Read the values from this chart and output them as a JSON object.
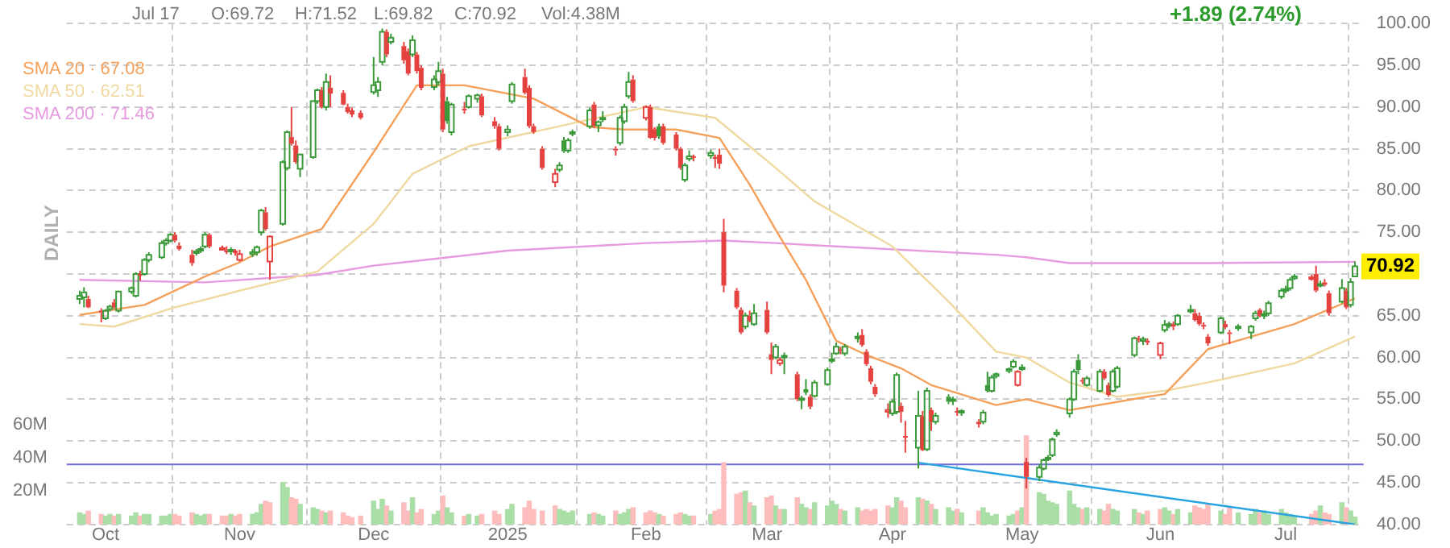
{
  "chart_data": {
    "type": "candlestick",
    "x": [
      "2024-09-25",
      "2024-09-26",
      "2024-09-27",
      "2024-09-30",
      "2024-10-01",
      "2024-10-02",
      "2024-10-03",
      "2024-10-04",
      "2024-10-07",
      "2024-10-08",
      "2024-10-09",
      "2024-10-10",
      "2024-10-11",
      "2024-10-14",
      "2024-10-15",
      "2024-10-16",
      "2024-10-17",
      "2024-10-18",
      "2024-10-21",
      "2024-10-22",
      "2024-10-23",
      "2024-10-24",
      "2024-10-25",
      "2024-10-28",
      "2024-10-29",
      "2024-10-30",
      "2024-10-31",
      "2024-11-01",
      "2024-11-04",
      "2024-11-05",
      "2024-11-06",
      "2024-11-07",
      "2024-11-08",
      "2024-11-11",
      "2024-11-12",
      "2024-11-13",
      "2024-11-14",
      "2024-11-15",
      "2024-11-18",
      "2024-11-19",
      "2024-11-20",
      "2024-11-21",
      "2024-11-22",
      "2024-11-25",
      "2024-11-26",
      "2024-11-27",
      "2024-11-29",
      "2024-12-02",
      "2024-12-03",
      "2024-12-04",
      "2024-12-05",
      "2024-12-06",
      "2024-12-09",
      "2024-12-10",
      "2024-12-11",
      "2024-12-12",
      "2024-12-13",
      "2024-12-16",
      "2024-12-17",
      "2024-12-18",
      "2024-12-19",
      "2024-12-20",
      "2024-12-23",
      "2024-12-24",
      "2024-12-26",
      "2024-12-27",
      "2024-12-30",
      "2024-12-31",
      "2025-01-02",
      "2025-01-03",
      "2025-01-06",
      "2025-01-07",
      "2025-01-08",
      "2025-01-10",
      "2025-01-13",
      "2025-01-14",
      "2025-01-15",
      "2025-01-16",
      "2025-01-17",
      "2025-01-21",
      "2025-01-22",
      "2025-01-23",
      "2025-01-24",
      "2025-01-27",
      "2025-01-28",
      "2025-01-29",
      "2025-01-30",
      "2025-01-31",
      "2025-02-03",
      "2025-02-04",
      "2025-02-05",
      "2025-02-06",
      "2025-02-07",
      "2025-02-10",
      "2025-02-11",
      "2025-02-12",
      "2025-02-13",
      "2025-02-14",
      "2025-02-18",
      "2025-02-19",
      "2025-02-20",
      "2025-02-21",
      "2025-02-24",
      "2025-02-25",
      "2025-02-26",
      "2025-02-27",
      "2025-02-28",
      "2025-03-03",
      "2025-03-04",
      "2025-03-05",
      "2025-03-06",
      "2025-03-07",
      "2025-03-10",
      "2025-03-11",
      "2025-03-12",
      "2025-03-13",
      "2025-03-14",
      "2025-03-17",
      "2025-03-18",
      "2025-03-19",
      "2025-03-20",
      "2025-03-21",
      "2025-03-24",
      "2025-03-25",
      "2025-03-26",
      "2025-03-27",
      "2025-03-28",
      "2025-03-31",
      "2025-04-01",
      "2025-04-02",
      "2025-04-03",
      "2025-04-04",
      "2025-04-07",
      "2025-04-08",
      "2025-04-09",
      "2025-04-10",
      "2025-04-11",
      "2025-04-14",
      "2025-04-15",
      "2025-04-16",
      "2025-04-17",
      "2025-04-21",
      "2025-04-22",
      "2025-04-23",
      "2025-04-24",
      "2025-04-25",
      "2025-04-28",
      "2025-04-29",
      "2025-04-30",
      "2025-05-01",
      "2025-05-02",
      "2025-05-05",
      "2025-05-06",
      "2025-05-07",
      "2025-05-08",
      "2025-05-09",
      "2025-05-12",
      "2025-05-13",
      "2025-05-14",
      "2025-05-15",
      "2025-05-16",
      "2025-05-19",
      "2025-05-20",
      "2025-05-21",
      "2025-05-22",
      "2025-05-23",
      "2025-05-27",
      "2025-05-28",
      "2025-05-29",
      "2025-05-30",
      "2025-06-02",
      "2025-06-03",
      "2025-06-04",
      "2025-06-05",
      "2025-06-06",
      "2025-06-09",
      "2025-06-10",
      "2025-06-11",
      "2025-06-12",
      "2025-06-13",
      "2025-06-16",
      "2025-06-17",
      "2025-06-18",
      "2025-06-20",
      "2025-06-23",
      "2025-06-24",
      "2025-06-25",
      "2025-06-26",
      "2025-06-27",
      "2025-06-30",
      "2025-07-01",
      "2025-07-02",
      "2025-07-03",
      "2025-07-07",
      "2025-07-08",
      "2025-07-09",
      "2025-07-10",
      "2025-07-11",
      "2025-07-14",
      "2025-07-15",
      "2025-07-16",
      "2025-07-17"
    ],
    "ohlc": [
      [
        67.0,
        68.0,
        66.4,
        67.4
      ],
      [
        67.2,
        68.4,
        66.0,
        67.8
      ],
      [
        67.0,
        67.4,
        65.9,
        66.0
      ],
      [
        65.6,
        65.9,
        64.2,
        65.4
      ],
      [
        64.7,
        65.8,
        64.5,
        65.6
      ],
      [
        65.8,
        66.3,
        65.5,
        66.1
      ],
      [
        66.6,
        67.0,
        65.8,
        66.0
      ],
      [
        65.6,
        68.0,
        65.4,
        67.9
      ],
      [
        67.9,
        68.5,
        67.6,
        68.3
      ],
      [
        67.4,
        70.2,
        67.2,
        70.0
      ],
      [
        70.0,
        70.4,
        69.2,
        69.9
      ],
      [
        70.0,
        71.9,
        69.8,
        71.7
      ],
      [
        71.7,
        72.6,
        71.4,
        72.3
      ],
      [
        72.0,
        74.0,
        71.8,
        73.7
      ],
      [
        73.7,
        74.3,
        73.4,
        74.0
      ],
      [
        74.0,
        74.9,
        73.8,
        74.7
      ],
      [
        74.7,
        75.0,
        73.8,
        74.0
      ],
      [
        73.4,
        73.8,
        72.8,
        73.0
      ],
      [
        72.3,
        72.9,
        71.0,
        71.3
      ],
      [
        72.5,
        73.0,
        72.2,
        72.7
      ],
      [
        72.8,
        73.3,
        72.5,
        73.0
      ],
      [
        73.3,
        75.0,
        73.1,
        74.7
      ],
      [
        74.7,
        74.9,
        73.1,
        73.3
      ],
      [
        73.0,
        73.4,
        72.8,
        73.1
      ],
      [
        72.8,
        73.3,
        72.4,
        72.7
      ],
      [
        72.7,
        73.2,
        72.3,
        72.9
      ],
      [
        72.8,
        73.0,
        72.2,
        72.5
      ],
      [
        71.7,
        72.9,
        71.5,
        72.4
      ],
      [
        72.4,
        73.0,
        72.0,
        72.6
      ],
      [
        72.6,
        73.4,
        72.2,
        73.2
      ],
      [
        75.0,
        77.8,
        74.6,
        77.6
      ],
      [
        77.4,
        78.0,
        75.2,
        75.4
      ],
      [
        71.5,
        74.6,
        69.3,
        74.5
      ],
      [
        76.0,
        83.6,
        75.8,
        83.4
      ],
      [
        82.7,
        87.2,
        82.4,
        87.0
      ],
      [
        86.4,
        90.0,
        85.4,
        85.6
      ],
      [
        85.4,
        86.0,
        83.2,
        83.4
      ],
      [
        82.6,
        84.4,
        81.6,
        84.3
      ],
      [
        84.0,
        90.8,
        83.8,
        90.7
      ],
      [
        90.7,
        92.2,
        90.4,
        92.0
      ],
      [
        92.0,
        92.4,
        89.8,
        90.0
      ],
      [
        90.0,
        94.0,
        89.6,
        93.0
      ],
      [
        92.3,
        93.8,
        90.0,
        91.6
      ],
      [
        91.7,
        92.0,
        90.2,
        90.3
      ],
      [
        90.0,
        90.4,
        89.2,
        89.4
      ],
      [
        89.6,
        89.9,
        88.8,
        89.1
      ],
      [
        89.3,
        89.6,
        88.5,
        88.7
      ],
      [
        91.8,
        96.0,
        91.5,
        92.6
      ],
      [
        92.0,
        93.6,
        91.2,
        93.0
      ],
      [
        95.4,
        99.4,
        95.0,
        99.0
      ],
      [
        99.0,
        99.3,
        96.0,
        96.3
      ],
      [
        97.8,
        98.8,
        97.5,
        98.3
      ],
      [
        97.3,
        97.8,
        95.2,
        95.6
      ],
      [
        96.7,
        97.0,
        93.8,
        94.0
      ],
      [
        96.3,
        98.6,
        96.0,
        98.0
      ],
      [
        96.3,
        96.6,
        94.0,
        94.3
      ],
      [
        94.7,
        95.0,
        92.0,
        92.3
      ],
      [
        92.4,
        93.8,
        92.0,
        93.3
      ],
      [
        93.0,
        95.4,
        92.6,
        94.3
      ],
      [
        94.0,
        94.6,
        87.0,
        87.3
      ],
      [
        90.7,
        91.2,
        88.0,
        88.3
      ],
      [
        87.0,
        90.5,
        86.6,
        90.3
      ],
      [
        89.8,
        90.6,
        89.2,
        89.6
      ],
      [
        90.0,
        91.5,
        89.8,
        91.3
      ],
      [
        91.0,
        91.6,
        90.5,
        91.4
      ],
      [
        91.3,
        91.6,
        88.8,
        89.0
      ],
      [
        88.3,
        88.8,
        87.4,
        87.7
      ],
      [
        87.7,
        88.0,
        84.8,
        85.0
      ],
      [
        87.0,
        87.8,
        86.5,
        87.3
      ],
      [
        90.7,
        93.0,
        90.4,
        92.7
      ],
      [
        93.6,
        94.6,
        91.5,
        91.7
      ],
      [
        92.3,
        92.6,
        87.5,
        87.7
      ],
      [
        87.7,
        88.0,
        86.8,
        87.0
      ],
      [
        85.0,
        85.3,
        82.5,
        82.7
      ],
      [
        81.0,
        82.6,
        80.4,
        82.0
      ],
      [
        82.5,
        83.4,
        82.2,
        83.0
      ],
      [
        86.0,
        86.4,
        84.5,
        84.7
      ],
      [
        84.8,
        86.3,
        84.5,
        86.0
      ],
      [
        86.8,
        87.3,
        86.5,
        87.0
      ],
      [
        87.7,
        89.9,
        87.4,
        89.6
      ],
      [
        90.3,
        90.6,
        87.5,
        87.7
      ],
      [
        87.8,
        88.4,
        87.0,
        88.2
      ],
      [
        88.5,
        89.5,
        88.2,
        88.7
      ],
      [
        85.0,
        85.3,
        84.2,
        84.8
      ],
      [
        85.7,
        89.0,
        85.4,
        88.7
      ],
      [
        88.3,
        90.4,
        88.0,
        90.0
      ],
      [
        91.3,
        94.2,
        91.0,
        93.0
      ],
      [
        93.3,
        93.8,
        90.5,
        90.7
      ],
      [
        88.7,
        90.2,
        88.4,
        90.0
      ],
      [
        90.0,
        90.3,
        86.2,
        86.3
      ],
      [
        87.3,
        87.6,
        86.0,
        86.3
      ],
      [
        87.7,
        88.0,
        86.2,
        86.5
      ],
      [
        87.7,
        88.0,
        85.5,
        85.7
      ],
      [
        86.7,
        87.0,
        84.8,
        85.0
      ],
      [
        85.0,
        85.2,
        82.5,
        82.7
      ],
      [
        81.3,
        83.3,
        81.0,
        83.0
      ],
      [
        83.8,
        84.8,
        83.5,
        84.1
      ],
      [
        84.1,
        84.3,
        83.5,
        84.0
      ],
      [
        84.2,
        84.9,
        83.8,
        84.5
      ],
      [
        84.0,
        84.3,
        82.7,
        83.8
      ],
      [
        84.3,
        85.0,
        82.6,
        83.2
      ],
      [
        75.0,
        76.6,
        67.8,
        68.6
      ],
      [
        68.0,
        68.3,
        65.8,
        66.0
      ],
      [
        65.7,
        66.0,
        62.8,
        63.0
      ],
      [
        63.7,
        65.4,
        63.4,
        65.0
      ],
      [
        65.0,
        65.6,
        64.2,
        64.4
      ],
      [
        64.0,
        66.4,
        63.8,
        65.3
      ],
      [
        65.7,
        66.7,
        62.8,
        63.0
      ],
      [
        60.4,
        61.8,
        58.0,
        59.7
      ],
      [
        60.0,
        61.6,
        59.8,
        61.3
      ],
      [
        59.3,
        60.0,
        59.0,
        59.7
      ],
      [
        60.0,
        60.6,
        58.0,
        60.2
      ],
      [
        58.0,
        58.3,
        54.8,
        55.0
      ],
      [
        55.0,
        55.4,
        53.8,
        55.1
      ],
      [
        56.2,
        57.4,
        55.5,
        55.8
      ],
      [
        55.3,
        55.6,
        53.8,
        54.1
      ],
      [
        55.4,
        57.3,
        55.2,
        57.0
      ],
      [
        56.8,
        58.8,
        56.6,
        58.5
      ],
      [
        59.6,
        60.6,
        59.3,
        59.8
      ],
      [
        60.5,
        61.8,
        60.3,
        61.3
      ],
      [
        61.0,
        61.3,
        60.4,
        60.8
      ],
      [
        60.5,
        61.6,
        60.2,
        61.3
      ],
      [
        62.3,
        63.0,
        61.8,
        62.5
      ],
      [
        62.7,
        63.4,
        61.3,
        61.5
      ],
      [
        60.7,
        61.0,
        59.0,
        59.2
      ],
      [
        58.7,
        59.0,
        56.8,
        57.1
      ],
      [
        56.5,
        56.8,
        55.3,
        55.6
      ],
      [
        53.5,
        54.5,
        52.8,
        53.7
      ],
      [
        53.3,
        55.0,
        53.0,
        54.7
      ],
      [
        53.5,
        58.2,
        53.2,
        57.9
      ],
      [
        54.2,
        54.6,
        52.2,
        53.5
      ],
      [
        50.6,
        52.4,
        48.6,
        50.4
      ],
      [
        49.2,
        56.0,
        46.7,
        53.0
      ],
      [
        53.0,
        53.6,
        48.8,
        48.9
      ],
      [
        49.0,
        56.4,
        48.8,
        56.0
      ],
      [
        53.7,
        54.0,
        51.2,
        52.3
      ],
      [
        52.3,
        53.4,
        52.0,
        53.0
      ],
      [
        55.3,
        55.6,
        54.4,
        54.7
      ],
      [
        54.8,
        55.3,
        54.3,
        55.0
      ],
      [
        53.6,
        54.0,
        53.0,
        53.5
      ],
      [
        53.4,
        53.8,
        53.0,
        53.6
      ],
      [
        52.3,
        52.6,
        51.6,
        52.0
      ],
      [
        52.3,
        53.7,
        52.0,
        53.4
      ],
      [
        56.7,
        58.3,
        55.8,
        56.0
      ],
      [
        56.0,
        57.9,
        55.8,
        57.6
      ],
      [
        57.8,
        58.2,
        57.5,
        58.0
      ],
      [
        58.4,
        58.8,
        58.1,
        58.6
      ],
      [
        58.9,
        59.8,
        58.7,
        59.5
      ],
      [
        56.7,
        58.5,
        56.5,
        58.3
      ],
      [
        58.6,
        59.2,
        58.4,
        58.8
      ],
      [
        47.5,
        48.0,
        44.3,
        45.7
      ],
      [
        45.7,
        47.2,
        45.2,
        46.8
      ],
      [
        46.7,
        47.9,
        46.5,
        47.7
      ],
      [
        47.9,
        48.3,
        47.6,
        48.0
      ],
      [
        48.3,
        50.4,
        48.1,
        50.2
      ],
      [
        50.8,
        51.4,
        50.5,
        51.0
      ],
      [
        53.3,
        55.2,
        52.8,
        55.0
      ],
      [
        55.0,
        58.6,
        54.8,
        58.3
      ],
      [
        59.7,
        60.4,
        58.0,
        58.5
      ],
      [
        57.3,
        57.6,
        56.8,
        57.1
      ],
      [
        56.7,
        57.8,
        56.5,
        57.5
      ],
      [
        56.0,
        58.6,
        55.8,
        58.3
      ],
      [
        58.3,
        58.6,
        57.3,
        57.5
      ],
      [
        56.7,
        57.0,
        55.3,
        55.5
      ],
      [
        56.0,
        58.6,
        55.8,
        58.3
      ],
      [
        56.5,
        59.0,
        56.3,
        58.7
      ],
      [
        60.3,
        62.5,
        60.0,
        62.3
      ],
      [
        62.3,
        62.6,
        61.8,
        62.1
      ],
      [
        62.0,
        62.5,
        61.5,
        62.2
      ],
      [
        62.0,
        62.3,
        61.5,
        61.8
      ],
      [
        60.3,
        61.9,
        59.8,
        61.7
      ],
      [
        63.3,
        64.5,
        63.0,
        63.9
      ],
      [
        63.8,
        64.3,
        63.5,
        64.0
      ],
      [
        64.0,
        64.3,
        63.3,
        63.7
      ],
      [
        64.0,
        65.2,
        63.8,
        65.0
      ],
      [
        65.5,
        66.3,
        65.3,
        65.7
      ],
      [
        65.3,
        65.8,
        64.3,
        64.5
      ],
      [
        65.0,
        65.4,
        63.8,
        64.0
      ],
      [
        63.9,
        64.2,
        63.4,
        63.7
      ],
      [
        62.5,
        62.8,
        61.4,
        61.7
      ],
      [
        63.0,
        64.9,
        62.8,
        64.7
      ],
      [
        64.0,
        64.4,
        63.4,
        63.6
      ],
      [
        63.0,
        63.3,
        61.6,
        62.9
      ],
      [
        63.5,
        64.0,
        63.2,
        63.7
      ],
      [
        63.0,
        63.9,
        62.2,
        63.7
      ],
      [
        64.7,
        65.6,
        64.4,
        65.3
      ],
      [
        65.7,
        65.9,
        64.8,
        65.0
      ],
      [
        65.0,
        65.6,
        64.6,
        65.2
      ],
      [
        65.3,
        66.8,
        65.0,
        66.5
      ],
      [
        67.3,
        68.3,
        67.0,
        68.0
      ],
      [
        68.0,
        68.6,
        67.7,
        68.2
      ],
      [
        68.3,
        69.6,
        68.0,
        69.3
      ],
      [
        69.5,
        70.0,
        69.3,
        69.7
      ],
      [
        69.5,
        69.9,
        69.2,
        69.6
      ],
      [
        70.0,
        71.0,
        67.8,
        68.0
      ],
      [
        68.6,
        69.2,
        68.4,
        68.8
      ],
      [
        69.0,
        69.4,
        68.5,
        68.7
      ],
      [
        67.7,
        68.0,
        65.0,
        65.3
      ],
      [
        66.7,
        69.4,
        66.5,
        68.3
      ],
      [
        68.0,
        68.3,
        65.8,
        66.0
      ],
      [
        66.3,
        69.5,
        66.0,
        69.03
      ],
      [
        69.72,
        71.52,
        69.72,
        70.92
      ]
    ],
    "colors": [
      "#3a9a3a",
      "#3a9a3a",
      "#e5413f",
      "#e5413f",
      "#3a9a3a",
      "#3a9a3a",
      "#e5413f",
      "#3a9a3a",
      "#3a9a3a",
      "#3a9a3a",
      "#e5413f",
      "#3a9a3a",
      "#3a9a3a",
      "#3a9a3a",
      "#3a9a3a",
      "#3a9a3a",
      "#e5413f",
      "#e5413f",
      "#e5413f",
      "#3a9a3a",
      "#3a9a3a",
      "#3a9a3a",
      "#e5413f",
      "#e5413f",
      "#e5413f",
      "#3a9a3a",
      "#e5413f",
      "#e5413f",
      "#3a9a3a",
      "#3a9a3a",
      "#3a9a3a",
      "#e5413f",
      "#e5413f",
      "#3a9a3a",
      "#3a9a3a",
      "#e5413f",
      "#e5413f",
      "#3a9a3a",
      "#3a9a3a",
      "#3a9a3a",
      "#e5413f",
      "#3a9a3a",
      "#e5413f",
      "#e5413f",
      "#e5413f",
      "#e5413f",
      "#e5413f",
      "#3a9a3a",
      "#3a9a3a",
      "#3a9a3a",
      "#e5413f",
      "#3a9a3a",
      "#e5413f",
      "#e5413f",
      "#3a9a3a",
      "#e5413f",
      "#e5413f",
      "#3a9a3a",
      "#3a9a3a",
      "#e5413f",
      "#3a9a3a",
      "#3a9a3a",
      "#e5413f",
      "#3a9a3a",
      "#3a9a3a",
      "#e5413f",
      "#e5413f",
      "#e5413f",
      "#3a9a3a",
      "#3a9a3a",
      "#e5413f",
      "#e5413f",
      "#e5413f",
      "#e5413f",
      "#e5413f",
      "#3a9a3a",
      "#3a9a3a",
      "#3a9a3a",
      "#3a9a3a",
      "#3a9a3a",
      "#e5413f",
      "#3a9a3a",
      "#3a9a3a",
      "#e5413f",
      "#3a9a3a",
      "#3a9a3a",
      "#3a9a3a",
      "#e5413f",
      "#e5413f",
      "#e5413f",
      "#e5413f",
      "#3a9a3a",
      "#e5413f",
      "#e5413f",
      "#e5413f",
      "#3a9a3a",
      "#3a9a3a",
      "#e5413f",
      "#3a9a3a",
      "#e5413f",
      "#e5413f",
      "#e5413f",
      "#e5413f",
      "#e5413f",
      "#3a9a3a",
      "#e5413f",
      "#3a9a3a",
      "#e5413f",
      "#e5413f",
      "#3a9a3a",
      "#e5413f",
      "#3a9a3a",
      "#e5413f",
      "#3a9a3a",
      "#3a9a3a",
      "#e5413f",
      "#3a9a3a",
      "#3a9a3a",
      "#3a9a3a",
      "#3a9a3a",
      "#e5413f",
      "#3a9a3a",
      "#3a9a3a",
      "#e5413f",
      "#e5413f",
      "#e5413f",
      "#e5413f",
      "#e5413f",
      "#3a9a3a",
      "#3a9a3a",
      "#e5413f",
      "#e5413f",
      "#3a9a3a",
      "#e5413f",
      "#3a9a3a",
      "#e5413f",
      "#3a9a3a",
      "#3a9a3a",
      "#3a9a3a",
      "#e5413f",
      "#3a9a3a",
      "#e5413f",
      "#3a9a3a",
      "#3a9a3a",
      "#3a9a3a",
      "#3a9a3a",
      "#3a9a3a",
      "#3a9a3a",
      "#e5413f",
      "#3a9a3a",
      "#e5413f",
      "#3a9a3a",
      "#3a9a3a",
      "#3a9a3a",
      "#3a9a3a",
      "#3a9a3a",
      "#3a9a3a",
      "#3a9a3a",
      "#3a9a3a",
      "#e5413f",
      "#3a9a3a",
      "#3a9a3a",
      "#e5413f",
      "#e5413f",
      "#3a9a3a",
      "#3a9a3a",
      "#3a9a3a",
      "#e5413f",
      "#3a9a3a",
      "#e5413f",
      "#e5413f",
      "#3a9a3a",
      "#3a9a3a",
      "#e5413f",
      "#3a9a3a",
      "#3a9a3a",
      "#e5413f",
      "#e5413f",
      "#e5413f",
      "#e5413f",
      "#3a9a3a",
      "#e5413f",
      "#e5413f",
      "#3a9a3a",
      "#3a9a3a",
      "#3a9a3a",
      "#e5413f",
      "#3a9a3a",
      "#3a9a3a",
      "#3a9a3a",
      "#3a9a3a",
      "#3a9a3a",
      "#3a9a3a",
      "#e5413f",
      "#e5413f",
      "#3a9a3a",
      "#e5413f",
      "#e5413f",
      "#3a9a3a",
      "#e5413f",
      "#3a9a3a",
      "#3a9a3a"
    ],
    "xlim": [
      "2024-09-22",
      "2025-07-19"
    ],
    "xticks": [
      {
        "value": "2024-10-01",
        "label": "Oct"
      },
      {
        "value": "2024-11-01",
        "label": "Nov"
      },
      {
        "value": "2024-12-02",
        "label": "Dec"
      },
      {
        "value": "2025-01-02",
        "label": "2025"
      },
      {
        "value": "2025-02-03",
        "label": "Feb"
      },
      {
        "value": "2025-03-03",
        "label": "Mar"
      },
      {
        "value": "2025-04-01",
        "label": "Apr"
      },
      {
        "value": "2025-05-01",
        "label": "May"
      },
      {
        "value": "2025-06-02",
        "label": "Jun"
      },
      {
        "value": "2025-07-01",
        "label": "Jul"
      }
    ],
    "ylim": [
      40,
      100
    ],
    "yticks": [
      {
        "value": 40,
        "label": "40.00"
      },
      {
        "value": 45,
        "label": "45.00"
      },
      {
        "value": 50,
        "label": "50.00"
      },
      {
        "value": 55,
        "label": "55.00"
      },
      {
        "value": 60,
        "label": "60.00"
      },
      {
        "value": 65,
        "label": "65.00"
      },
      {
        "value": 70,
        "label": null
      },
      {
        "value": 75,
        "label": "75.00"
      },
      {
        "value": 80,
        "label": "80.00"
      },
      {
        "value": 85,
        "label": "85.00"
      },
      {
        "value": 90,
        "label": "90.00"
      },
      {
        "value": 95,
        "label": "95.00"
      },
      {
        "value": 100,
        "label": "100.00"
      }
    ],
    "y2lim": [
      0,
      300
    ],
    "y2ticks": [
      {
        "value": 20,
        "label": "20M"
      },
      {
        "value": 40,
        "label": "40M"
      },
      {
        "value": 60,
        "label": "60M"
      }
    ],
    "grid": true,
    "legend": "top left",
    "series": [
      {
        "type": "bar",
        "axis": "y2",
        "values": [
          7,
          6,
          8,
          6,
          5,
          6,
          5,
          6,
          5,
          7,
          5,
          6,
          6,
          5,
          5,
          6,
          6,
          5,
          7,
          6,
          5,
          6,
          6,
          5,
          5,
          6,
          5,
          6,
          6,
          7,
          12,
          14,
          13,
          25,
          22,
          16,
          15,
          12,
          10,
          9,
          8,
          7,
          8,
          7,
          5,
          4,
          5,
          14,
          9,
          15,
          11,
          8,
          13,
          8,
          16,
          7,
          9,
          6,
          8,
          17,
          10,
          7,
          5,
          6,
          5,
          6,
          8,
          6,
          9,
          12,
          10,
          14,
          9,
          8,
          11,
          9,
          8,
          7,
          8,
          6,
          7,
          6,
          5,
          8,
          6,
          7,
          9,
          10,
          7,
          8,
          7,
          6,
          5,
          6,
          7,
          6,
          5,
          5,
          6,
          8,
          9,
          37,
          18,
          19,
          20,
          13,
          11,
          16,
          17,
          11,
          9,
          9,
          16,
          12,
          10,
          9,
          13,
          11,
          14,
          12,
          9,
          8,
          10,
          8,
          9,
          8,
          9,
          11,
          10,
          16,
          14,
          10,
          16,
          15,
          14,
          12,
          9,
          10,
          8,
          9,
          7,
          8,
          10,
          7,
          5,
          6,
          5,
          6,
          8,
          10,
          53,
          19,
          18,
          14,
          13,
          12,
          20,
          12,
          10,
          9,
          10,
          9,
          8,
          12,
          9,
          8,
          9,
          7,
          6,
          8,
          9,
          10,
          8,
          6,
          9,
          7,
          11,
          10,
          9,
          12,
          8,
          6,
          10,
          7,
          6,
          9,
          7,
          8,
          6,
          9,
          7,
          6,
          5,
          6,
          8,
          11,
          7,
          6,
          13,
          10,
          8,
          4.38
        ],
        "colors": [
          "#a9dea6",
          "#a9dea6",
          "#fdbdbd",
          "#fdbdbd",
          "#a9dea6",
          "#a9dea6",
          "#fdbdbd",
          "#a9dea6",
          "#a9dea6",
          "#a9dea6",
          "#fdbdbd",
          "#a9dea6",
          "#a9dea6",
          "#a9dea6",
          "#a9dea6",
          "#a9dea6",
          "#fdbdbd",
          "#fdbdbd",
          "#fdbdbd",
          "#a9dea6",
          "#a9dea6",
          "#a9dea6",
          "#fdbdbd",
          "#fdbdbd",
          "#fdbdbd",
          "#a9dea6",
          "#fdbdbd",
          "#fdbdbd",
          "#a9dea6",
          "#a9dea6",
          "#a9dea6",
          "#fdbdbd",
          "#fdbdbd",
          "#a9dea6",
          "#a9dea6",
          "#fdbdbd",
          "#fdbdbd",
          "#a9dea6",
          "#a9dea6",
          "#a9dea6",
          "#fdbdbd",
          "#a9dea6",
          "#fdbdbd",
          "#fdbdbd",
          "#fdbdbd",
          "#fdbdbd",
          "#fdbdbd",
          "#a9dea6",
          "#a9dea6",
          "#a9dea6",
          "#fdbdbd",
          "#a9dea6",
          "#fdbdbd",
          "#fdbdbd",
          "#a9dea6",
          "#fdbdbd",
          "#fdbdbd",
          "#a9dea6",
          "#a9dea6",
          "#fdbdbd",
          "#a9dea6",
          "#a9dea6",
          "#fdbdbd",
          "#a9dea6",
          "#a9dea6",
          "#fdbdbd",
          "#fdbdbd",
          "#fdbdbd",
          "#a9dea6",
          "#a9dea6",
          "#fdbdbd",
          "#fdbdbd",
          "#fdbdbd",
          "#fdbdbd",
          "#fdbdbd",
          "#a9dea6",
          "#a9dea6",
          "#a9dea6",
          "#a9dea6",
          "#a9dea6",
          "#fdbdbd",
          "#a9dea6",
          "#a9dea6",
          "#fdbdbd",
          "#a9dea6",
          "#a9dea6",
          "#a9dea6",
          "#fdbdbd",
          "#fdbdbd",
          "#fdbdbd",
          "#fdbdbd",
          "#a9dea6",
          "#fdbdbd",
          "#fdbdbd",
          "#fdbdbd",
          "#a9dea6",
          "#a9dea6",
          "#fdbdbd",
          "#a9dea6",
          "#fdbdbd",
          "#fdbdbd",
          "#fdbdbd",
          "#fdbdbd",
          "#fdbdbd",
          "#a9dea6",
          "#fdbdbd",
          "#a9dea6",
          "#fdbdbd",
          "#fdbdbd",
          "#a9dea6",
          "#fdbdbd",
          "#a9dea6",
          "#fdbdbd",
          "#a9dea6",
          "#a9dea6",
          "#fdbdbd",
          "#a9dea6",
          "#a9dea6",
          "#a9dea6",
          "#a9dea6",
          "#fdbdbd",
          "#a9dea6",
          "#a9dea6",
          "#fdbdbd",
          "#fdbdbd",
          "#fdbdbd",
          "#fdbdbd",
          "#fdbdbd",
          "#a9dea6",
          "#a9dea6",
          "#fdbdbd",
          "#fdbdbd",
          "#a9dea6",
          "#fdbdbd",
          "#a9dea6",
          "#fdbdbd",
          "#a9dea6",
          "#a9dea6",
          "#a9dea6",
          "#fdbdbd",
          "#a9dea6",
          "#fdbdbd",
          "#a9dea6",
          "#a9dea6",
          "#a9dea6",
          "#a9dea6",
          "#a9dea6",
          "#a9dea6",
          "#fdbdbd",
          "#a9dea6",
          "#fdbdbd",
          "#a9dea6",
          "#a9dea6",
          "#a9dea6",
          "#a9dea6",
          "#a9dea6",
          "#a9dea6",
          "#a9dea6",
          "#a9dea6",
          "#fdbdbd",
          "#a9dea6",
          "#a9dea6",
          "#fdbdbd",
          "#fdbdbd",
          "#a9dea6",
          "#a9dea6",
          "#a9dea6",
          "#fdbdbd",
          "#a9dea6",
          "#fdbdbd",
          "#fdbdbd",
          "#a9dea6",
          "#a9dea6",
          "#fdbdbd",
          "#a9dea6",
          "#a9dea6",
          "#fdbdbd",
          "#fdbdbd",
          "#fdbdbd",
          "#fdbdbd",
          "#a9dea6",
          "#fdbdbd",
          "#fdbdbd",
          "#a9dea6",
          "#a9dea6",
          "#a9dea6",
          "#fdbdbd",
          "#a9dea6",
          "#a9dea6",
          "#a9dea6",
          "#a9dea6",
          "#a9dea6",
          "#a9dea6",
          "#fdbdbd",
          "#fdbdbd",
          "#a9dea6",
          "#fdbdbd",
          "#fdbdbd",
          "#a9dea6",
          "#fdbdbd",
          "#a9dea6",
          "#a9dea6"
        ]
      },
      {
        "type": "line",
        "name": "SMA 20 · 67.08",
        "color": "#f5a05a",
        "x": [
          "2024-09-25",
          "2024-10-10",
          "2024-10-24",
          "2024-11-01",
          "2024-11-08",
          "2024-11-20",
          "2024-12-02",
          "2024-12-12",
          "2024-12-23",
          "2025-01-08",
          "2025-01-21",
          "2025-01-29",
          "2025-02-10",
          "2025-02-20",
          "2025-02-27",
          "2025-03-05",
          "2025-03-12",
          "2025-03-19",
          "2025-03-26",
          "2025-04-03",
          "2025-04-10",
          "2025-04-25",
          "2025-05-02",
          "2025-05-12",
          "2025-05-30",
          "2025-06-03",
          "2025-06-13",
          "2025-07-03",
          "2025-07-17"
        ],
        "values": [
          65.1,
          66.3,
          69.7,
          71.4,
          73.3,
          75.4,
          84.6,
          92.6,
          92.6,
          91.0,
          87.6,
          87.3,
          87.3,
          86.3,
          80.7,
          75.3,
          69.3,
          62.0,
          60.3,
          58.7,
          56.7,
          54.3,
          55.0,
          53.7,
          55.3,
          55.6,
          61.0,
          64.0,
          67.08
        ]
      },
      {
        "type": "line",
        "name": "SMA 50 · 62.51",
        "color": "#f0d9a0",
        "x": [
          "2024-09-25",
          "2024-10-03",
          "2024-10-17",
          "2024-11-01",
          "2024-11-19",
          "2024-12-02",
          "2024-12-11",
          "2024-12-24",
          "2025-01-14",
          "2025-02-03",
          "2025-02-19",
          "2025-03-05",
          "2025-03-14",
          "2025-04-01",
          "2025-04-14",
          "2025-04-25",
          "2025-05-02",
          "2025-05-12",
          "2025-05-23",
          "2025-06-03",
          "2025-06-13",
          "2025-07-03",
          "2025-07-17"
        ],
        "values": [
          64.0,
          63.7,
          66.0,
          68.0,
          70.3,
          76.0,
          82.0,
          85.3,
          87.7,
          90.0,
          88.7,
          82.7,
          78.7,
          73.3,
          66.7,
          60.7,
          60.0,
          57.0,
          55.3,
          56.0,
          57.0,
          59.3,
          62.51
        ]
      },
      {
        "type": "line",
        "name": "SMA 200 · 71.46",
        "color": "#e79ae0",
        "x": [
          "2024-09-25",
          "2024-10-24",
          "2024-11-19",
          "2024-12-02",
          "2025-01-02",
          "2025-02-03",
          "2025-02-21",
          "2025-03-05",
          "2025-03-19",
          "2025-04-25",
          "2025-05-02",
          "2025-05-12",
          "2025-06-13",
          "2025-07-17"
        ],
        "values": [
          69.3,
          69.0,
          69.9,
          71.0,
          72.8,
          73.7,
          74.0,
          73.7,
          73.3,
          72.3,
          72.0,
          71.3,
          71.3,
          71.46
        ]
      },
      {
        "type": "line",
        "color": "#29a3e0",
        "x": [
          "2025-04-07",
          "2025-07-17"
        ],
        "values": [
          47.4,
          40.0
        ]
      }
    ],
    "ref_lines": [
      {
        "axis": "y",
        "value": 47.2,
        "color": "#6f6fd8"
      }
    ],
    "annotations": [
      "Jul 17",
      "O:69.72",
      "H:71.52",
      "L:69.82",
      "C:70.92",
      "Vol:4.38M",
      "+1.89 (2.74%)",
      "DAILY",
      {
        "text": "70.92",
        "x": "2025-07-17",
        "y": 70.92
      }
    ]
  }
}
